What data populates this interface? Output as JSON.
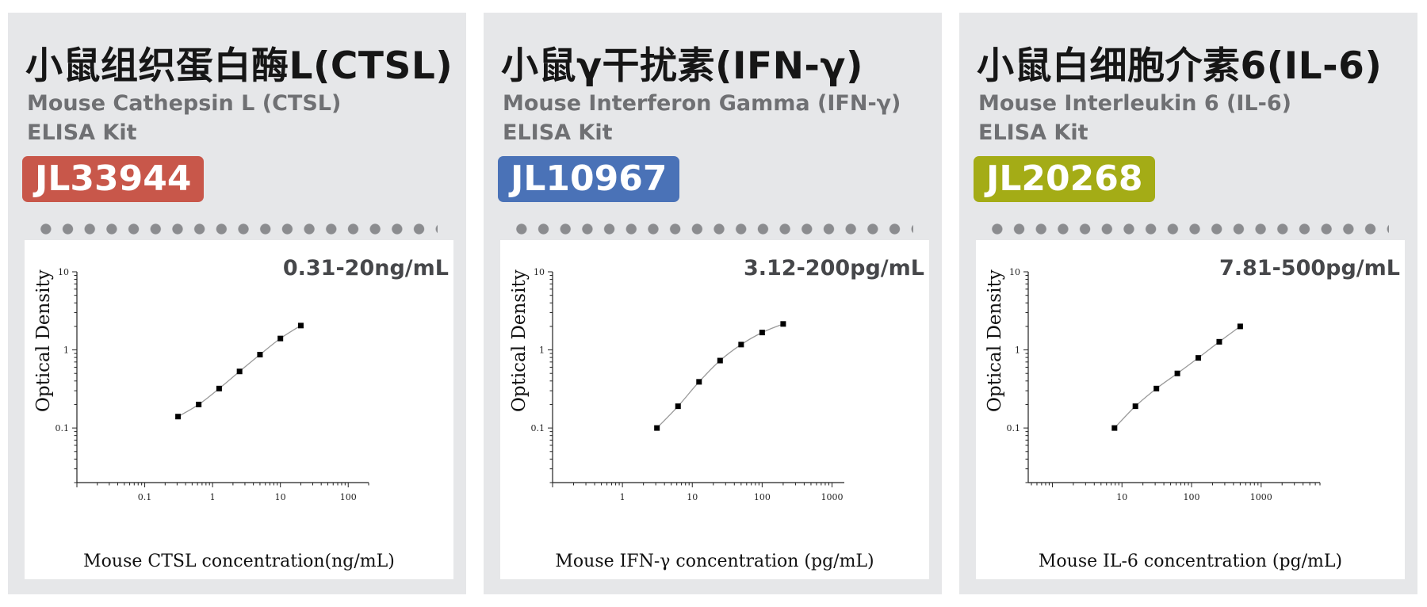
{
  "cards": [
    {
      "title": "小鼠组织蛋白酶L(CTSL)",
      "subtitle_line1": "Mouse Cathepsin L (CTSL)",
      "subtitle_line2": "ELISA Kit",
      "catalog": "JL33944",
      "badge_color": "#c8574a",
      "range": "0.31-20ng/mL"
    },
    {
      "title": "小鼠γ干扰素(IFN-γ)",
      "subtitle_line1": "Mouse Interferon Gamma (IFN-γ)",
      "subtitle_line2": "ELISA Kit",
      "catalog": "JL10967",
      "badge_color": "#4a72b7",
      "range": "3.12-200pg/mL"
    },
    {
      "title": "小鼠白细胞介素6(IL-6)",
      "subtitle_line1": "Mouse Interleukin 6 (IL-6)",
      "subtitle_line2": "ELISA Kit",
      "catalog": "JL20268",
      "badge_color": "#a4ac16",
      "range": "7.81-500pg/mL"
    }
  ],
  "chart_data": [
    {
      "type": "scatter",
      "xscale": "log",
      "yscale": "log",
      "xlim": [
        0.01,
        200
      ],
      "ylim": [
        0.02,
        10
      ],
      "xticks": [
        "0.1",
        "1",
        "10",
        "100"
      ],
      "yticks": [
        "10",
        "1",
        "0.1"
      ],
      "xlabel": "Mouse CTSL concentration(ng/mL)",
      "ylabel": "Optical Density",
      "grid": false,
      "series": [
        {
          "x": [
            0.31,
            0.625,
            1.25,
            2.5,
            5,
            10,
            20
          ],
          "y": [
            0.14,
            0.2,
            0.32,
            0.53,
            0.87,
            1.4,
            2.05
          ]
        }
      ]
    },
    {
      "type": "scatter",
      "xscale": "log",
      "yscale": "log",
      "xlim": [
        0.1,
        1500
      ],
      "ylim": [
        0.02,
        10
      ],
      "xticks": [
        "1",
        "10",
        "100",
        "1000"
      ],
      "yticks": [
        "10",
        "1",
        "0.1"
      ],
      "xlabel": "Mouse IFN-γ concentration (pg/mL)",
      "ylabel": "Optical Density",
      "grid": false,
      "series": [
        {
          "x": [
            3.12,
            6.25,
            12.5,
            25,
            50,
            100,
            200
          ],
          "y": [
            0.1,
            0.19,
            0.39,
            0.73,
            1.17,
            1.67,
            2.15
          ]
        }
      ]
    },
    {
      "type": "scatter",
      "xscale": "log",
      "yscale": "log",
      "xlim": [
        0.45,
        7000
      ],
      "ylim": [
        0.02,
        10
      ],
      "xticks": [
        "10",
        "100",
        "1000"
      ],
      "yticks": [
        "10",
        "1",
        "0.1"
      ],
      "xlabel": "Mouse IL-6 concentration (pg/mL)",
      "ylabel": "Optical Density",
      "grid": false,
      "series": [
        {
          "x": [
            7.81,
            15.6,
            31.25,
            62.5,
            125,
            250,
            500
          ],
          "y": [
            0.1,
            0.19,
            0.32,
            0.5,
            0.79,
            1.27,
            2.0
          ]
        }
      ]
    }
  ]
}
